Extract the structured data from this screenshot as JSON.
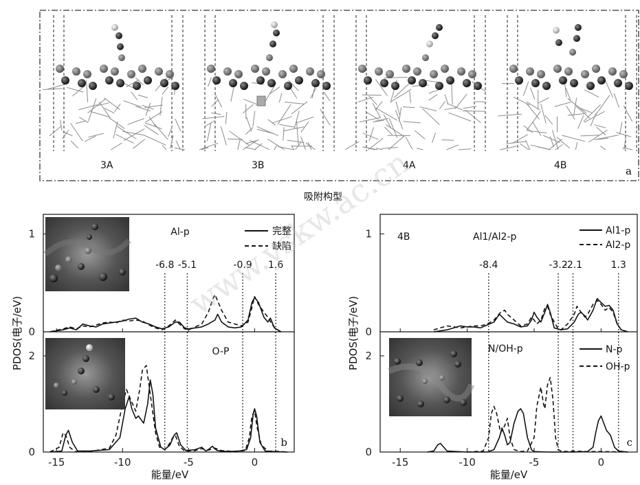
{
  "top": {
    "structures": [
      "3A",
      "3B",
      "4A",
      "4B"
    ],
    "panel_label": "a",
    "caption": "吸附构型"
  },
  "watermark": "www.yskw.ac.cn",
  "chart_data": [
    {
      "type": "line",
      "panel": "b",
      "ylabel": "PDOS(电子/eV)",
      "xlabel": "能量/eV",
      "xlim": [
        -16,
        3
      ],
      "xticks": [
        "-15",
        "-10",
        "-5",
        "0"
      ],
      "xtick_values": [
        -15,
        -10,
        -5,
        0
      ],
      "vlines": [
        {
          "x": -6.8,
          "label": "-6.8"
        },
        {
          "x": -5.1,
          "label": "-5.1"
        },
        {
          "x": -0.9,
          "label": "-0.9"
        },
        {
          "x": 1.6,
          "label": "1.6"
        }
      ],
      "subplots": [
        {
          "title": "Al-p",
          "ylim": [
            0,
            1.2
          ],
          "yticks": [
            "0",
            "1"
          ],
          "ytick_values": [
            0,
            1
          ],
          "series": [
            {
              "name": "完整",
              "style": "solid",
              "x": [
                -15.5,
                -14.5,
                -14,
                -13.5,
                -13,
                -12.5,
                -12,
                -11.5,
                -11,
                -10.5,
                -10,
                -9.5,
                -9,
                -8.5,
                -8,
                -7.5,
                -7,
                -6.5,
                -6,
                -5.7,
                -5.3,
                -5,
                -4.5,
                -4,
                -3.5,
                -3,
                -2.8,
                -2.5,
                -2,
                -1.5,
                -1,
                -0.5,
                -0.2,
                0,
                0.3,
                0.7,
                1,
                1.2,
                1.5,
                2
              ],
              "y": [
                0,
                0.02,
                0.04,
                0.02,
                0.08,
                0.06,
                0.05,
                0.08,
                0.09,
                0.1,
                0.11,
                0.13,
                0.14,
                0.1,
                0.08,
                0.05,
                0.03,
                0.05,
                0.1,
                0.1,
                0.04,
                0.03,
                0.04,
                0.05,
                0.08,
                0.12,
                0.18,
                0.1,
                0.05,
                0.04,
                0.05,
                0.12,
                0.3,
                0.35,
                0.3,
                0.15,
                0.1,
                0.14,
                0.04,
                0
              ]
            },
            {
              "name": "缺陷",
              "style": "dashed",
              "x": [
                -15.5,
                -14.5,
                -14,
                -13.5,
                -13,
                -12.5,
                -12,
                -11.5,
                -11,
                -10.5,
                -10,
                -9.5,
                -9,
                -8.5,
                -8,
                -7.5,
                -7,
                -6.5,
                -6,
                -5.7,
                -5.3,
                -5,
                -4.5,
                -4,
                -3.5,
                -3.2,
                -3,
                -2.5,
                -2,
                -1.5,
                -1,
                -0.5,
                -0.2,
                0,
                0.3,
                0.7,
                1,
                1.3,
                1.6,
                2
              ],
              "y": [
                0,
                0.03,
                0.05,
                0.03,
                0.06,
                0.05,
                0.07,
                0.09,
                0.1,
                0.09,
                0.12,
                0.11,
                0.12,
                0.11,
                0.07,
                0.04,
                0.02,
                0.06,
                0.12,
                0.08,
                0.03,
                0.02,
                0.05,
                0.08,
                0.2,
                0.32,
                0.38,
                0.22,
                0.1,
                0.08,
                0.06,
                0.1,
                0.25,
                0.36,
                0.28,
                0.2,
                0.15,
                0.08,
                0.03,
                0
              ]
            }
          ]
        },
        {
          "title": "O-P",
          "ylim": [
            0,
            2.5
          ],
          "yticks": [
            "0",
            "2"
          ],
          "ytick_values": [
            0,
            2
          ],
          "series": [
            {
              "name": "完整",
              "style": "solid",
              "x": [
                -15.5,
                -14.6,
                -14.3,
                -14.1,
                -13.8,
                -13.4,
                -12.5,
                -11,
                -10.2,
                -9.8,
                -9.5,
                -9.3,
                -9,
                -8.8,
                -8.4,
                -8.1,
                -7.9,
                -7.7,
                -7.5,
                -7.1,
                -6.8,
                -6.4,
                -6.1,
                -5.9,
                -5.6,
                -5.2,
                -4.5,
                -4,
                -3.7,
                -3.5,
                -3.2,
                -2.9,
                -2.6,
                -2,
                -1.2,
                -0.6,
                -0.3,
                -0.1,
                0,
                0.15,
                0.4,
                0.8,
                1.5,
                2.5
              ],
              "y": [
                0,
                0.02,
                0.35,
                0.45,
                0.2,
                0.02,
                0.02,
                0.05,
                0.3,
                0.9,
                1.15,
                0.9,
                0.7,
                0.75,
                0.6,
                1.0,
                1.5,
                1.2,
                0.5,
                0.1,
                0.05,
                0.15,
                0.35,
                0.4,
                0.15,
                0.03,
                0.05,
                0.1,
                0.02,
                0.05,
                0.12,
                0.04,
                0.02,
                0.01,
                0.02,
                0.05,
                0.3,
                0.8,
                0.9,
                0.75,
                0.2,
                0.02,
                0.01,
                0
              ]
            },
            {
              "name": "缺陷",
              "style": "dashed",
              "x": [
                -15.5,
                -14.8,
                -14.5,
                -14.3,
                -14,
                -13.6,
                -12.5,
                -11,
                -10.5,
                -10,
                -9.7,
                -9.4,
                -9,
                -8.7,
                -8.5,
                -8.2,
                -8,
                -7.8,
                -7.5,
                -7.2,
                -6.8,
                -6.5,
                -6.2,
                -6,
                -5.7,
                -5.3,
                -4.5,
                -4,
                -3.5,
                -3,
                -2.5,
                -1.5,
                -0.7,
                -0.4,
                -0.2,
                0,
                0.2,
                0.5,
                1,
                2,
                2.5
              ],
              "y": [
                0,
                0.1,
                0.4,
                0.35,
                0.1,
                0.01,
                0.01,
                0.08,
                0.35,
                1.0,
                1.3,
                1.1,
                0.85,
                1.3,
                1.7,
                1.8,
                1.4,
                1.0,
                0.4,
                0.1,
                0.05,
                0.15,
                0.3,
                0.35,
                0.12,
                0.02,
                0.03,
                0.07,
                0.04,
                0.08,
                0.03,
                0.01,
                0.03,
                0.3,
                0.75,
                0.85,
                0.5,
                0.15,
                0.02,
                0.01,
                0
              ]
            }
          ]
        }
      ]
    },
    {
      "type": "line",
      "panel": "c",
      "structure": "4B",
      "ylabel": "PDOS(电子/eV)",
      "xlabel": "能量/eV",
      "xlim": [
        -16.5,
        2.7
      ],
      "xticks": [
        "-15",
        "-10",
        "-5",
        "0"
      ],
      "xtick_values": [
        -15,
        -10,
        -5,
        0
      ],
      "vlines": [
        {
          "x": -8.4,
          "label": "-8.4"
        },
        {
          "x": -3.2,
          "label": "-3.2"
        },
        {
          "x": -2.1,
          "label": "-2.1"
        },
        {
          "x": 1.3,
          "label": "1.3"
        }
      ],
      "subplots": [
        {
          "title": "Al1/Al2-p",
          "ylim": [
            0,
            1.2
          ],
          "yticks": [
            "0",
            "1"
          ],
          "ytick_values": [
            0,
            1
          ],
          "series": [
            {
              "name": "Al1-p",
              "style": "solid",
              "x": [
                -12.5,
                -11.5,
                -10.5,
                -10,
                -9.5,
                -9,
                -8.5,
                -8,
                -7.6,
                -7.3,
                -7,
                -6.5,
                -6,
                -5.5,
                -5.2,
                -5,
                -4.8,
                -4.5,
                -4.2,
                -4,
                -3.8,
                -3.5,
                -3,
                -2.5,
                -2,
                -1.7,
                -1.5,
                -1.2,
                -1,
                -0.6,
                -0.3,
                0,
                0.3,
                0.6,
                0.9,
                1.2,
                1.5,
                2
              ],
              "y": [
                0,
                0.02,
                0.06,
                0.05,
                0.05,
                0.04,
                0.07,
                0.1,
                0.18,
                0.14,
                0.1,
                0.08,
                0.05,
                0.06,
                0.12,
                0.2,
                0.15,
                0.1,
                0.2,
                0.28,
                0.2,
                0.04,
                0.02,
                0.03,
                0.1,
                0.18,
                0.2,
                0.16,
                0.12,
                0.22,
                0.34,
                0.3,
                0.26,
                0.27,
                0.22,
                0.08,
                0.02,
                0
              ]
            },
            {
              "name": "Al2-p",
              "style": "dashed",
              "x": [
                -12.5,
                -11.5,
                -10.5,
                -10,
                -9.5,
                -9,
                -8.5,
                -8,
                -7.5,
                -7.2,
                -7,
                -6.5,
                -6,
                -5.5,
                -5.2,
                -5,
                -4.8,
                -4.5,
                -4.2,
                -4,
                -3.8,
                -3.5,
                -3.2,
                -3,
                -2.5,
                -2,
                -1.8,
                -1.5,
                -1.2,
                -1,
                -0.6,
                -0.3,
                0,
                0.3,
                0.6,
                0.9,
                1.2,
                1.5,
                2
              ],
              "y": [
                0.02,
                0.06,
                0.04,
                0.05,
                0.06,
                0.06,
                0.08,
                0.12,
                0.2,
                0.22,
                0.18,
                0.12,
                0.06,
                0.08,
                0.15,
                0.12,
                0.08,
                0.12,
                0.24,
                0.26,
                0.18,
                0.1,
                0.03,
                0.02,
                0.08,
                0.18,
                0.26,
                0.2,
                0.15,
                0.18,
                0.28,
                0.32,
                0.28,
                0.22,
                0.25,
                0.2,
                0.08,
                0.02,
                0
              ]
            }
          ]
        },
        {
          "title": "N/OH-p",
          "ylim": [
            0,
            2.5
          ],
          "yticks": [
            "0",
            "2"
          ],
          "ytick_values": [
            0,
            2
          ],
          "series": [
            {
              "name": "N-p",
              "style": "solid",
              "x": [
                -13,
                -12.5,
                -12.2,
                -12,
                -11.5,
                -10,
                -8.5,
                -8,
                -7.6,
                -7.4,
                -7.2,
                -7,
                -6.8,
                -6.5,
                -6.2,
                -6,
                -5.8,
                -5.5,
                -5.2,
                -5,
                -4,
                -3,
                -2,
                -1,
                -0.6,
                -0.4,
                -0.2,
                0,
                0.2,
                0.4,
                0.7,
                1,
                1.3,
                2
              ],
              "y": [
                0,
                0.02,
                0.15,
                0.18,
                0.02,
                0,
                0,
                0.05,
                0.3,
                0.5,
                0.35,
                0.15,
                0.2,
                0.6,
                0.85,
                0.9,
                0.8,
                0.3,
                0.05,
                0.01,
                0,
                0,
                0,
                0.01,
                0.1,
                0.4,
                0.65,
                0.75,
                0.6,
                0.45,
                0.35,
                0.1,
                0.02,
                0
              ]
            },
            {
              "name": "OH-p",
              "style": "dashed",
              "x": [
                -10,
                -8.8,
                -8.4,
                -8.2,
                -8,
                -7.8,
                -7.5,
                -7.2,
                -7,
                -6.8,
                -6.5,
                -6,
                -5.5,
                -5,
                -4.8,
                -4.5,
                -4.3,
                -4.2,
                -4,
                -3.8,
                -3.6,
                -3.4,
                -3.2,
                -3,
                -2.5,
                -2,
                -1,
                0,
                2
              ],
              "y": [
                0,
                0.02,
                0.3,
                0.8,
                0.95,
                0.8,
                0.4,
                0.55,
                0.7,
                0.3,
                0.05,
                0.01,
                0.02,
                0.3,
                0.95,
                1.35,
                1.0,
                0.9,
                1.4,
                1.55,
                1.1,
                0.3,
                0.05,
                0.02,
                0.01,
                0.02,
                0.01,
                0.01,
                0
              ]
            }
          ]
        }
      ]
    }
  ]
}
